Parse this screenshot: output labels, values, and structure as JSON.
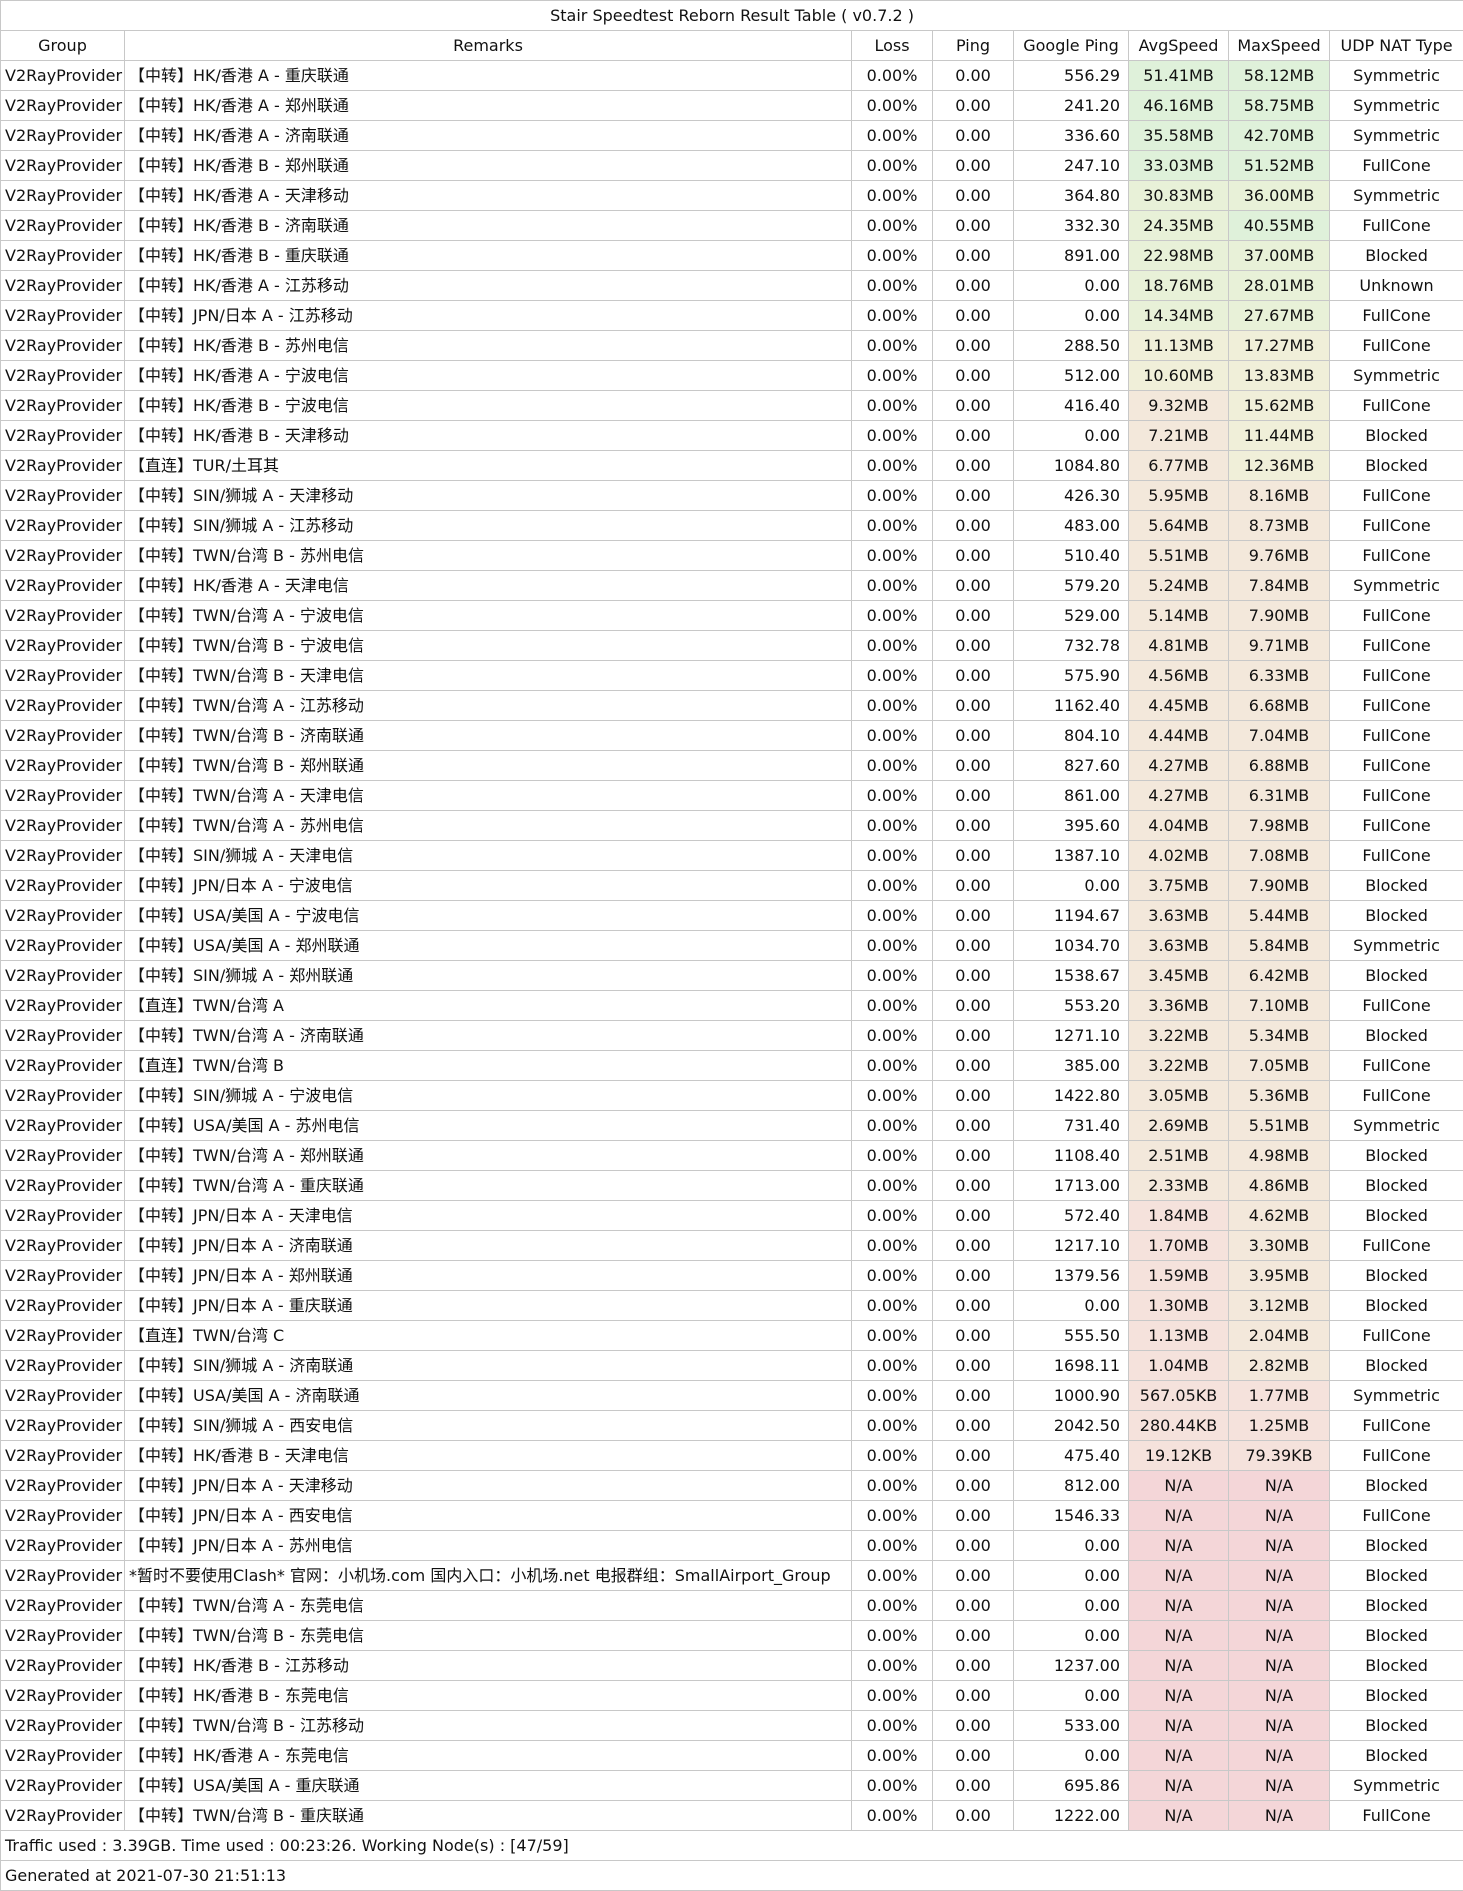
{
  "title": "Stair Speedtest Reborn Result Table ( v0.7.2 )",
  "headers": [
    "Group",
    "Remarks",
    "Loss",
    "Ping",
    "Google Ping",
    "AvgSpeed",
    "MaxSpeed",
    "UDP NAT Type"
  ],
  "colors": {
    "na": "#f4d6d8",
    "very_slow": "#f5e2dc",
    "slow": "#f3e8db",
    "medium": "#f0efd9",
    "fast": "#e8f1d8",
    "very_fast": "#dff1da"
  },
  "rows": [
    {
      "group": "V2RayProvider",
      "remarks": "【中转】HK/香港 A - 重庆联通",
      "loss": "0.00%",
      "ping": "0.00",
      "gping": "556.29",
      "avg": "51.41MB",
      "max": "58.12MB",
      "nat": "Symmetric",
      "avg_tier": "very_fast",
      "max_tier": "very_fast"
    },
    {
      "group": "V2RayProvider",
      "remarks": "【中转】HK/香港 A - 郑州联通",
      "loss": "0.00%",
      "ping": "0.00",
      "gping": "241.20",
      "avg": "46.16MB",
      "max": "58.75MB",
      "nat": "Symmetric",
      "avg_tier": "very_fast",
      "max_tier": "very_fast"
    },
    {
      "group": "V2RayProvider",
      "remarks": "【中转】HK/香港 A - 济南联通",
      "loss": "0.00%",
      "ping": "0.00",
      "gping": "336.60",
      "avg": "35.58MB",
      "max": "42.70MB",
      "nat": "Symmetric",
      "avg_tier": "very_fast",
      "max_tier": "very_fast"
    },
    {
      "group": "V2RayProvider",
      "remarks": "【中转】HK/香港 B - 郑州联通",
      "loss": "0.00%",
      "ping": "0.00",
      "gping": "247.10",
      "avg": "33.03MB",
      "max": "51.52MB",
      "nat": "FullCone",
      "avg_tier": "very_fast",
      "max_tier": "very_fast"
    },
    {
      "group": "V2RayProvider",
      "remarks": "【中转】HK/香港 A - 天津移动",
      "loss": "0.00%",
      "ping": "0.00",
      "gping": "364.80",
      "avg": "30.83MB",
      "max": "36.00MB",
      "nat": "Symmetric",
      "avg_tier": "fast",
      "max_tier": "fast"
    },
    {
      "group": "V2RayProvider",
      "remarks": "【中转】HK/香港 B - 济南联通",
      "loss": "0.00%",
      "ping": "0.00",
      "gping": "332.30",
      "avg": "24.35MB",
      "max": "40.55MB",
      "nat": "FullCone",
      "avg_tier": "fast",
      "max_tier": "very_fast"
    },
    {
      "group": "V2RayProvider",
      "remarks": "【中转】HK/香港 B - 重庆联通",
      "loss": "0.00%",
      "ping": "0.00",
      "gping": "891.00",
      "avg": "22.98MB",
      "max": "37.00MB",
      "nat": "Blocked",
      "avg_tier": "fast",
      "max_tier": "fast"
    },
    {
      "group": "V2RayProvider",
      "remarks": "【中转】HK/香港 A - 江苏移动",
      "loss": "0.00%",
      "ping": "0.00",
      "gping": "0.00",
      "avg": "18.76MB",
      "max": "28.01MB",
      "nat": "Unknown",
      "avg_tier": "fast",
      "max_tier": "fast"
    },
    {
      "group": "V2RayProvider",
      "remarks": "【中转】JPN/日本 A - 江苏移动",
      "loss": "0.00%",
      "ping": "0.00",
      "gping": "0.00",
      "avg": "14.34MB",
      "max": "27.67MB",
      "nat": "FullCone",
      "avg_tier": "fast",
      "max_tier": "fast"
    },
    {
      "group": "V2RayProvider",
      "remarks": "【中转】HK/香港 B - 苏州电信",
      "loss": "0.00%",
      "ping": "0.00",
      "gping": "288.50",
      "avg": "11.13MB",
      "max": "17.27MB",
      "nat": "FullCone",
      "avg_tier": "medium",
      "max_tier": "medium"
    },
    {
      "group": "V2RayProvider",
      "remarks": "【中转】HK/香港 A - 宁波电信",
      "loss": "0.00%",
      "ping": "0.00",
      "gping": "512.00",
      "avg": "10.60MB",
      "max": "13.83MB",
      "nat": "Symmetric",
      "avg_tier": "medium",
      "max_tier": "medium"
    },
    {
      "group": "V2RayProvider",
      "remarks": "【中转】HK/香港 B - 宁波电信",
      "loss": "0.00%",
      "ping": "0.00",
      "gping": "416.40",
      "avg": "9.32MB",
      "max": "15.62MB",
      "nat": "FullCone",
      "avg_tier": "slow",
      "max_tier": "medium"
    },
    {
      "group": "V2RayProvider",
      "remarks": "【中转】HK/香港 B - 天津移动",
      "loss": "0.00%",
      "ping": "0.00",
      "gping": "0.00",
      "avg": "7.21MB",
      "max": "11.44MB",
      "nat": "Blocked",
      "avg_tier": "slow",
      "max_tier": "medium"
    },
    {
      "group": "V2RayProvider",
      "remarks": "【直连】TUR/土耳其",
      "loss": "0.00%",
      "ping": "0.00",
      "gping": "1084.80",
      "avg": "6.77MB",
      "max": "12.36MB",
      "nat": "Blocked",
      "avg_tier": "slow",
      "max_tier": "medium"
    },
    {
      "group": "V2RayProvider",
      "remarks": "【中转】SIN/狮城 A - 天津移动",
      "loss": "0.00%",
      "ping": "0.00",
      "gping": "426.30",
      "avg": "5.95MB",
      "max": "8.16MB",
      "nat": "FullCone",
      "avg_tier": "slow",
      "max_tier": "slow"
    },
    {
      "group": "V2RayProvider",
      "remarks": "【中转】SIN/狮城 A - 江苏移动",
      "loss": "0.00%",
      "ping": "0.00",
      "gping": "483.00",
      "avg": "5.64MB",
      "max": "8.73MB",
      "nat": "FullCone",
      "avg_tier": "slow",
      "max_tier": "slow"
    },
    {
      "group": "V2RayProvider",
      "remarks": "【中转】TWN/台湾 B - 苏州电信",
      "loss": "0.00%",
      "ping": "0.00",
      "gping": "510.40",
      "avg": "5.51MB",
      "max": "9.76MB",
      "nat": "FullCone",
      "avg_tier": "slow",
      "max_tier": "slow"
    },
    {
      "group": "V2RayProvider",
      "remarks": "【中转】HK/香港 A - 天津电信",
      "loss": "0.00%",
      "ping": "0.00",
      "gping": "579.20",
      "avg": "5.24MB",
      "max": "7.84MB",
      "nat": "Symmetric",
      "avg_tier": "slow",
      "max_tier": "slow"
    },
    {
      "group": "V2RayProvider",
      "remarks": "【中转】TWN/台湾 A - 宁波电信",
      "loss": "0.00%",
      "ping": "0.00",
      "gping": "529.00",
      "avg": "5.14MB",
      "max": "7.90MB",
      "nat": "FullCone",
      "avg_tier": "slow",
      "max_tier": "slow"
    },
    {
      "group": "V2RayProvider",
      "remarks": "【中转】TWN/台湾 B - 宁波电信",
      "loss": "0.00%",
      "ping": "0.00",
      "gping": "732.78",
      "avg": "4.81MB",
      "max": "9.71MB",
      "nat": "FullCone",
      "avg_tier": "slow",
      "max_tier": "slow"
    },
    {
      "group": "V2RayProvider",
      "remarks": "【中转】TWN/台湾 B - 天津电信",
      "loss": "0.00%",
      "ping": "0.00",
      "gping": "575.90",
      "avg": "4.56MB",
      "max": "6.33MB",
      "nat": "FullCone",
      "avg_tier": "slow",
      "max_tier": "slow"
    },
    {
      "group": "V2RayProvider",
      "remarks": "【中转】TWN/台湾 A - 江苏移动",
      "loss": "0.00%",
      "ping": "0.00",
      "gping": "1162.40",
      "avg": "4.45MB",
      "max": "6.68MB",
      "nat": "FullCone",
      "avg_tier": "slow",
      "max_tier": "slow"
    },
    {
      "group": "V2RayProvider",
      "remarks": "【中转】TWN/台湾 B - 济南联通",
      "loss": "0.00%",
      "ping": "0.00",
      "gping": "804.10",
      "avg": "4.44MB",
      "max": "7.04MB",
      "nat": "FullCone",
      "avg_tier": "slow",
      "max_tier": "slow"
    },
    {
      "group": "V2RayProvider",
      "remarks": "【中转】TWN/台湾 B - 郑州联通",
      "loss": "0.00%",
      "ping": "0.00",
      "gping": "827.60",
      "avg": "4.27MB",
      "max": "6.88MB",
      "nat": "FullCone",
      "avg_tier": "slow",
      "max_tier": "slow"
    },
    {
      "group": "V2RayProvider",
      "remarks": "【中转】TWN/台湾 A - 天津电信",
      "loss": "0.00%",
      "ping": "0.00",
      "gping": "861.00",
      "avg": "4.27MB",
      "max": "6.31MB",
      "nat": "FullCone",
      "avg_tier": "slow",
      "max_tier": "slow"
    },
    {
      "group": "V2RayProvider",
      "remarks": "【中转】TWN/台湾 A - 苏州电信",
      "loss": "0.00%",
      "ping": "0.00",
      "gping": "395.60",
      "avg": "4.04MB",
      "max": "7.98MB",
      "nat": "FullCone",
      "avg_tier": "slow",
      "max_tier": "slow"
    },
    {
      "group": "V2RayProvider",
      "remarks": "【中转】SIN/狮城 A - 天津电信",
      "loss": "0.00%",
      "ping": "0.00",
      "gping": "1387.10",
      "avg": "4.02MB",
      "max": "7.08MB",
      "nat": "FullCone",
      "avg_tier": "slow",
      "max_tier": "slow"
    },
    {
      "group": "V2RayProvider",
      "remarks": "【中转】JPN/日本 A - 宁波电信",
      "loss": "0.00%",
      "ping": "0.00",
      "gping": "0.00",
      "avg": "3.75MB",
      "max": "7.90MB",
      "nat": "Blocked",
      "avg_tier": "slow",
      "max_tier": "slow"
    },
    {
      "group": "V2RayProvider",
      "remarks": "【中转】USA/美国 A - 宁波电信",
      "loss": "0.00%",
      "ping": "0.00",
      "gping": "1194.67",
      "avg": "3.63MB",
      "max": "5.44MB",
      "nat": "Blocked",
      "avg_tier": "slow",
      "max_tier": "slow"
    },
    {
      "group": "V2RayProvider",
      "remarks": "【中转】USA/美国 A - 郑州联通",
      "loss": "0.00%",
      "ping": "0.00",
      "gping": "1034.70",
      "avg": "3.63MB",
      "max": "5.84MB",
      "nat": "Symmetric",
      "avg_tier": "slow",
      "max_tier": "slow"
    },
    {
      "group": "V2RayProvider",
      "remarks": "【中转】SIN/狮城 A - 郑州联通",
      "loss": "0.00%",
      "ping": "0.00",
      "gping": "1538.67",
      "avg": "3.45MB",
      "max": "6.42MB",
      "nat": "Blocked",
      "avg_tier": "slow",
      "max_tier": "slow"
    },
    {
      "group": "V2RayProvider",
      "remarks": "【直连】TWN/台湾 A",
      "loss": "0.00%",
      "ping": "0.00",
      "gping": "553.20",
      "avg": "3.36MB",
      "max": "7.10MB",
      "nat": "FullCone",
      "avg_tier": "slow",
      "max_tier": "slow"
    },
    {
      "group": "V2RayProvider",
      "remarks": "【中转】TWN/台湾 A - 济南联通",
      "loss": "0.00%",
      "ping": "0.00",
      "gping": "1271.10",
      "avg": "3.22MB",
      "max": "5.34MB",
      "nat": "Blocked",
      "avg_tier": "slow",
      "max_tier": "slow"
    },
    {
      "group": "V2RayProvider",
      "remarks": "【直连】TWN/台湾 B",
      "loss": "0.00%",
      "ping": "0.00",
      "gping": "385.00",
      "avg": "3.22MB",
      "max": "7.05MB",
      "nat": "FullCone",
      "avg_tier": "slow",
      "max_tier": "slow"
    },
    {
      "group": "V2RayProvider",
      "remarks": "【中转】SIN/狮城 A - 宁波电信",
      "loss": "0.00%",
      "ping": "0.00",
      "gping": "1422.80",
      "avg": "3.05MB",
      "max": "5.36MB",
      "nat": "FullCone",
      "avg_tier": "slow",
      "max_tier": "slow"
    },
    {
      "group": "V2RayProvider",
      "remarks": "【中转】USA/美国 A - 苏州电信",
      "loss": "0.00%",
      "ping": "0.00",
      "gping": "731.40",
      "avg": "2.69MB",
      "max": "5.51MB",
      "nat": "Symmetric",
      "avg_tier": "slow",
      "max_tier": "slow"
    },
    {
      "group": "V2RayProvider",
      "remarks": "【中转】TWN/台湾 A - 郑州联通",
      "loss": "0.00%",
      "ping": "0.00",
      "gping": "1108.40",
      "avg": "2.51MB",
      "max": "4.98MB",
      "nat": "Blocked",
      "avg_tier": "slow",
      "max_tier": "slow"
    },
    {
      "group": "V2RayProvider",
      "remarks": "【中转】TWN/台湾 A - 重庆联通",
      "loss": "0.00%",
      "ping": "0.00",
      "gping": "1713.00",
      "avg": "2.33MB",
      "max": "4.86MB",
      "nat": "Blocked",
      "avg_tier": "slow",
      "max_tier": "slow"
    },
    {
      "group": "V2RayProvider",
      "remarks": "【中转】JPN/日本 A - 天津电信",
      "loss": "0.00%",
      "ping": "0.00",
      "gping": "572.40",
      "avg": "1.84MB",
      "max": "4.62MB",
      "nat": "Blocked",
      "avg_tier": "very_slow",
      "max_tier": "slow"
    },
    {
      "group": "V2RayProvider",
      "remarks": "【中转】JPN/日本 A - 济南联通",
      "loss": "0.00%",
      "ping": "0.00",
      "gping": "1217.10",
      "avg": "1.70MB",
      "max": "3.30MB",
      "nat": "FullCone",
      "avg_tier": "very_slow",
      "max_tier": "slow"
    },
    {
      "group": "V2RayProvider",
      "remarks": "【中转】JPN/日本 A - 郑州联通",
      "loss": "0.00%",
      "ping": "0.00",
      "gping": "1379.56",
      "avg": "1.59MB",
      "max": "3.95MB",
      "nat": "Blocked",
      "avg_tier": "very_slow",
      "max_tier": "slow"
    },
    {
      "group": "V2RayProvider",
      "remarks": "【中转】JPN/日本 A - 重庆联通",
      "loss": "0.00%",
      "ping": "0.00",
      "gping": "0.00",
      "avg": "1.30MB",
      "max": "3.12MB",
      "nat": "Blocked",
      "avg_tier": "very_slow",
      "max_tier": "slow"
    },
    {
      "group": "V2RayProvider",
      "remarks": "【直连】TWN/台湾 C",
      "loss": "0.00%",
      "ping": "0.00",
      "gping": "555.50",
      "avg": "1.13MB",
      "max": "2.04MB",
      "nat": "FullCone",
      "avg_tier": "very_slow",
      "max_tier": "slow"
    },
    {
      "group": "V2RayProvider",
      "remarks": "【中转】SIN/狮城 A - 济南联通",
      "loss": "0.00%",
      "ping": "0.00",
      "gping": "1698.11",
      "avg": "1.04MB",
      "max": "2.82MB",
      "nat": "Blocked",
      "avg_tier": "very_slow",
      "max_tier": "slow"
    },
    {
      "group": "V2RayProvider",
      "remarks": "【中转】USA/美国 A - 济南联通",
      "loss": "0.00%",
      "ping": "0.00",
      "gping": "1000.90",
      "avg": "567.05KB",
      "max": "1.77MB",
      "nat": "Symmetric",
      "avg_tier": "very_slow",
      "max_tier": "very_slow"
    },
    {
      "group": "V2RayProvider",
      "remarks": "【中转】SIN/狮城 A - 西安电信",
      "loss": "0.00%",
      "ping": "0.00",
      "gping": "2042.50",
      "avg": "280.44KB",
      "max": "1.25MB",
      "nat": "FullCone",
      "avg_tier": "very_slow",
      "max_tier": "very_slow"
    },
    {
      "group": "V2RayProvider",
      "remarks": "【中转】HK/香港 B - 天津电信",
      "loss": "0.00%",
      "ping": "0.00",
      "gping": "475.40",
      "avg": "19.12KB",
      "max": "79.39KB",
      "nat": "FullCone",
      "avg_tier": "very_slow",
      "max_tier": "very_slow"
    },
    {
      "group": "V2RayProvider",
      "remarks": "【中转】JPN/日本 A - 天津移动",
      "loss": "0.00%",
      "ping": "0.00",
      "gping": "812.00",
      "avg": "N/A",
      "max": "N/A",
      "nat": "Blocked",
      "avg_tier": "na",
      "max_tier": "na"
    },
    {
      "group": "V2RayProvider",
      "remarks": "【中转】JPN/日本 A - 西安电信",
      "loss": "0.00%",
      "ping": "0.00",
      "gping": "1546.33",
      "avg": "N/A",
      "max": "N/A",
      "nat": "FullCone",
      "avg_tier": "na",
      "max_tier": "na"
    },
    {
      "group": "V2RayProvider",
      "remarks": "【中转】JPN/日本 A - 苏州电信",
      "loss": "0.00%",
      "ping": "0.00",
      "gping": "0.00",
      "avg": "N/A",
      "max": "N/A",
      "nat": "Blocked",
      "avg_tier": "na",
      "max_tier": "na"
    },
    {
      "group": "V2RayProvider",
      "remarks": "*暂时不要使用Clash* 官网：小机场.com 国内入口：小机场.net 电报群组：SmallAirport_Group",
      "loss": "0.00%",
      "ping": "0.00",
      "gping": "0.00",
      "avg": "N/A",
      "max": "N/A",
      "nat": "Blocked",
      "avg_tier": "na",
      "max_tier": "na"
    },
    {
      "group": "V2RayProvider",
      "remarks": "【中转】TWN/台湾 A - 东莞电信",
      "loss": "0.00%",
      "ping": "0.00",
      "gping": "0.00",
      "avg": "N/A",
      "max": "N/A",
      "nat": "Blocked",
      "avg_tier": "na",
      "max_tier": "na"
    },
    {
      "group": "V2RayProvider",
      "remarks": "【中转】TWN/台湾 B - 东莞电信",
      "loss": "0.00%",
      "ping": "0.00",
      "gping": "0.00",
      "avg": "N/A",
      "max": "N/A",
      "nat": "Blocked",
      "avg_tier": "na",
      "max_tier": "na"
    },
    {
      "group": "V2RayProvider",
      "remarks": "【中转】HK/香港 B - 江苏移动",
      "loss": "0.00%",
      "ping": "0.00",
      "gping": "1237.00",
      "avg": "N/A",
      "max": "N/A",
      "nat": "Blocked",
      "avg_tier": "na",
      "max_tier": "na"
    },
    {
      "group": "V2RayProvider",
      "remarks": "【中转】HK/香港 B - 东莞电信",
      "loss": "0.00%",
      "ping": "0.00",
      "gping": "0.00",
      "avg": "N/A",
      "max": "N/A",
      "nat": "Blocked",
      "avg_tier": "na",
      "max_tier": "na"
    },
    {
      "group": "V2RayProvider",
      "remarks": "【中转】TWN/台湾 B - 江苏移动",
      "loss": "0.00%",
      "ping": "0.00",
      "gping": "533.00",
      "avg": "N/A",
      "max": "N/A",
      "nat": "Blocked",
      "avg_tier": "na",
      "max_tier": "na"
    },
    {
      "group": "V2RayProvider",
      "remarks": "【中转】HK/香港 A - 东莞电信",
      "loss": "0.00%",
      "ping": "0.00",
      "gping": "0.00",
      "avg": "N/A",
      "max": "N/A",
      "nat": "Blocked",
      "avg_tier": "na",
      "max_tier": "na"
    },
    {
      "group": "V2RayProvider",
      "remarks": "【中转】USA/美国 A - 重庆联通",
      "loss": "0.00%",
      "ping": "0.00",
      "gping": "695.86",
      "avg": "N/A",
      "max": "N/A",
      "nat": "Symmetric",
      "avg_tier": "na",
      "max_tier": "na"
    },
    {
      "group": "V2RayProvider",
      "remarks": "【中转】TWN/台湾 B - 重庆联通",
      "loss": "0.00%",
      "ping": "0.00",
      "gping": "1222.00",
      "avg": "N/A",
      "max": "N/A",
      "nat": "FullCone",
      "avg_tier": "na",
      "max_tier": "na"
    }
  ],
  "footer": {
    "summary": "Traffic used : 3.39GB. Time used : 00:23:26. Working Node(s) : [47/59]",
    "generated": "Generated at 2021-07-30 21:51:13"
  }
}
